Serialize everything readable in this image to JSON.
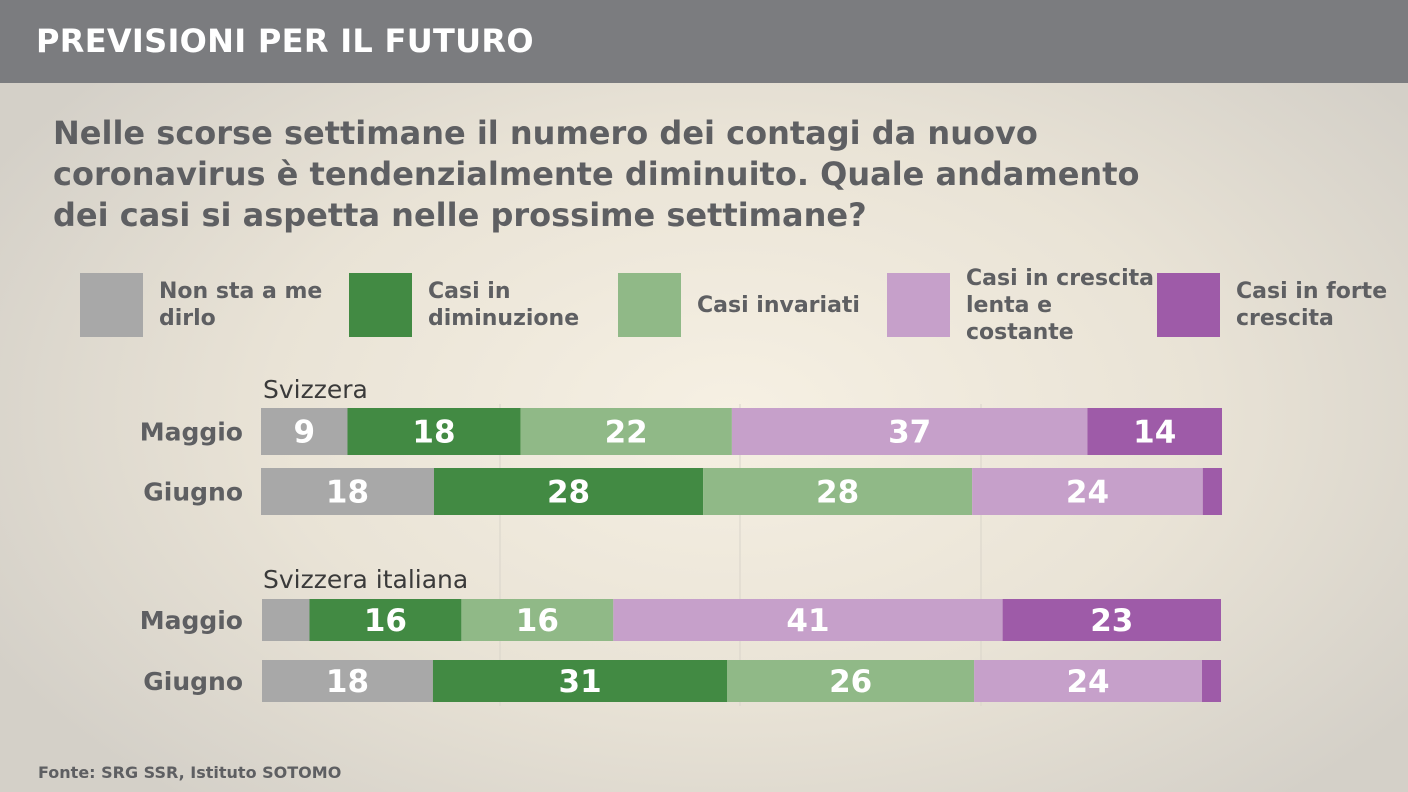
{
  "header": {
    "title": "PREVISIONI PER IL FUTURO"
  },
  "question": "Nelle scorse settimane il numero dei contagi da nuovo coronavirus è tendenzialmente diminuito. Quale andamento dei casi si aspetta nelle prossime settimane?",
  "legend": [
    {
      "label": "Non sta a me dirlo",
      "color": "#a8a8a8"
    },
    {
      "label": "Casi in diminuzione",
      "color": "#428a43"
    },
    {
      "label": "Casi invariati",
      "color": "#90b987"
    },
    {
      "label": "Casi in crescita lenta e costante",
      "color": "#c6a0ca"
    },
    {
      "label": "Casi in forte crescita",
      "color": "#9e5ba8"
    }
  ],
  "chart_data": {
    "type": "bar",
    "orientation": "horizontal",
    "stacked": true,
    "unit": "%",
    "series_names": [
      "Non sta a me dirlo",
      "Casi in diminuzione",
      "Casi invariati",
      "Casi in crescita lenta e costante",
      "Casi in forte crescita"
    ],
    "groups": [
      {
        "title": "Svizzera",
        "rows": [
          {
            "label": "Maggio",
            "values": [
              9,
              18,
              22,
              37,
              14
            ],
            "labels": [
              "9",
              "18",
              "22",
              "37",
              "14"
            ]
          },
          {
            "label": "Giugno",
            "values": [
              18,
              28,
              28,
              24,
              2
            ],
            "labels": [
              "18",
              "28",
              "28",
              "24",
              ""
            ]
          }
        ]
      },
      {
        "title": "Svizzera italiana",
        "rows": [
          {
            "label": "Maggio",
            "values": [
              5,
              16,
              16,
              41,
              23
            ],
            "labels": [
              "",
              "16",
              "16",
              "41",
              "23"
            ]
          },
          {
            "label": "Giugno",
            "values": [
              18,
              31,
              26,
              24,
              2
            ],
            "labels": [
              "18",
              "31",
              "26",
              "24",
              ""
            ]
          }
        ]
      }
    ]
  },
  "source": "Fonte: SRG SSR, Istituto SOTOMO"
}
